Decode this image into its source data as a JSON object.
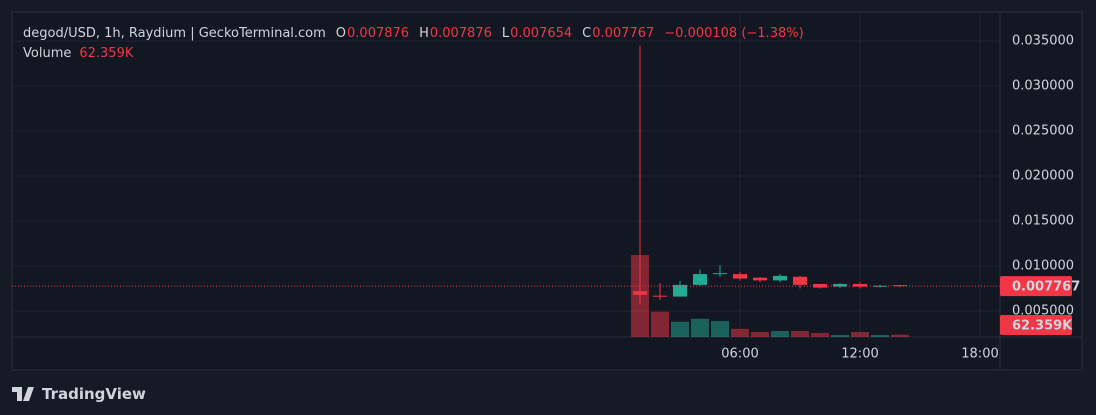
{
  "chart_data": {
    "type": "candlestick",
    "title": "degod/USD, 1h, Raydium | GeckoTerminal.com",
    "legend_labels": [
      "O",
      "H",
      "L",
      "C"
    ],
    "change": "−0.000108 (−1.38%)",
    "volume_title": "Volume",
    "x": [
      1,
      2,
      3,
      4,
      5,
      6,
      7,
      8,
      9,
      10,
      11,
      12,
      13,
      14
    ],
    "open": [
      0.0072,
      0.0067,
      0.0066,
      0.0079,
      0.0091,
      0.0091,
      0.0087,
      0.0084,
      0.0088,
      0.008,
      0.0077,
      0.008,
      0.0077,
      0.007876
    ],
    "high": [
      0.0345,
      0.0081,
      0.0083,
      0.0096,
      0.0101,
      0.0093,
      0.0088,
      0.0091,
      0.0089,
      0.008,
      0.0081,
      0.0082,
      0.0079,
      0.007876
    ],
    "low": [
      0.0057,
      0.0062,
      0.0066,
      0.0078,
      0.0088,
      0.0084,
      0.0082,
      0.0082,
      0.0075,
      0.0075,
      0.0076,
      0.0075,
      0.0076,
      0.007654
    ],
    "close": [
      0.0068,
      0.0066,
      0.0079,
      0.0091,
      0.0092,
      0.0086,
      0.0084,
      0.0089,
      0.0079,
      0.0076,
      0.008,
      0.0077,
      0.0078,
      0.007767
    ],
    "volume": [
      2200000,
      680000,
      410000,
      490000,
      430000,
      220000,
      135000,
      160000,
      160000,
      110000,
      55000,
      135000,
      55000,
      62359
    ],
    "volume_value_labels": [
      null,
      null,
      null,
      null,
      null,
      null,
      null,
      null,
      null,
      null,
      null,
      null,
      null,
      "62.359K"
    ],
    "up_color": "#22ab94",
    "down_color": "#f23645",
    "xlim": [
      -30.4,
      19.0
    ],
    "xticks": [
      {
        "value": 6,
        "label": "06:00"
      },
      {
        "value": 12,
        "label": "12:00"
      },
      {
        "value": 18,
        "label": "18:00"
      }
    ],
    "ylim": [
      0.00211,
      0.03822
    ],
    "yticks": [
      {
        "value": 0.005,
        "label": "0.005000"
      },
      {
        "value": 0.01,
        "label": "0.010000"
      },
      {
        "value": 0.015,
        "label": "0.015000"
      },
      {
        "value": 0.02,
        "label": "0.020000"
      },
      {
        "value": 0.025,
        "label": "0.025000"
      },
      {
        "value": 0.03,
        "label": "0.030000"
      },
      {
        "value": 0.035,
        "label": "0.035000"
      }
    ],
    "grid": true
  },
  "footer": {
    "brand": "TradingView"
  }
}
